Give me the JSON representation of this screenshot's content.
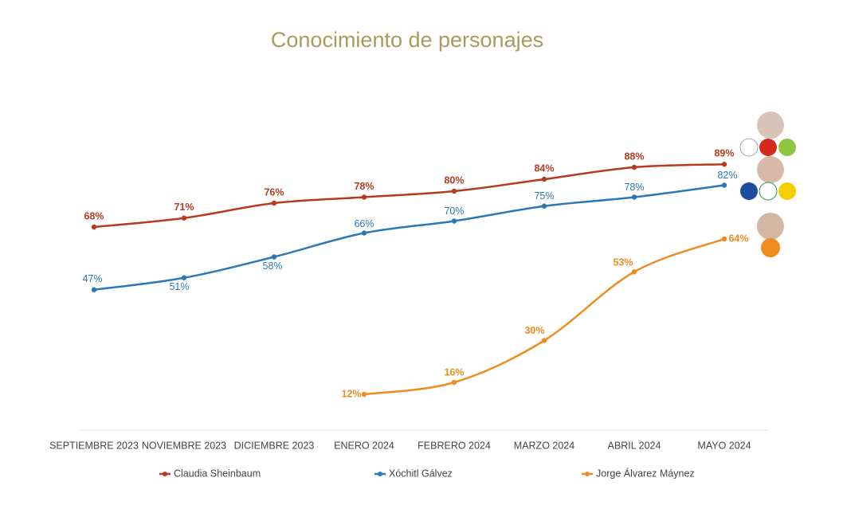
{
  "chart_data": {
    "type": "line",
    "title": "Conocimiento de personajes",
    "categories": [
      "SEPTIEMBRE 2023",
      "NOVIEMBRE 2023",
      "DICIEMBRE 2023",
      "ENERO 2024",
      "FEBRERO 2024",
      "MARZO 2024",
      "ABRIL 2024",
      "MAYO 2024"
    ],
    "ylim": [
      0,
      100
    ],
    "legend": "bottom",
    "series": [
      {
        "name": "Claudia Sheinbaum",
        "color": "#b83a1e",
        "values": [
          68,
          71,
          76,
          78,
          80,
          84,
          88,
          89
        ],
        "value_labels": [
          "68%",
          "71%",
          "76%",
          "78%",
          "80%",
          "84%",
          "88%",
          "89%"
        ]
      },
      {
        "name": "Xóchitl Gálvez",
        "color": "#2a78b8",
        "values": [
          47,
          51,
          58,
          66,
          70,
          75,
          78,
          82
        ],
        "value_labels": [
          "47%",
          "51%",
          "58%",
          "66%",
          "70%",
          "75%",
          "78%",
          "82%"
        ]
      },
      {
        "name": "Jorge Álvarez Máynez",
        "color": "#ee8c1f",
        "values": [
          null,
          null,
          null,
          12,
          16,
          30,
          53,
          64
        ],
        "value_labels": [
          null,
          null,
          null,
          "12%",
          "16%",
          "30%",
          "53%",
          "64%"
        ]
      }
    ]
  }
}
